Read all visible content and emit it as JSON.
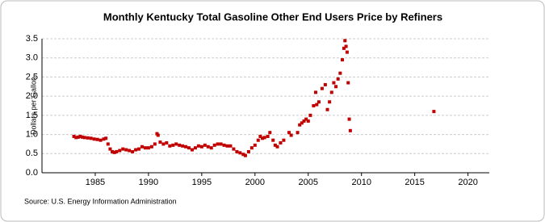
{
  "chart_data": {
    "type": "scatter",
    "title": "Monthly Kentucky Total Gasoline Other End Users Price by Refiners",
    "y_label": "Dollars per Gallon",
    "source": "Source: U.S. Energy Information Administration",
    "color": "#c00000",
    "x": [
      1983.0,
      1983.2,
      1983.4,
      1983.6,
      1983.8,
      1984.0,
      1984.3,
      1984.6,
      1984.9,
      1985.2,
      1985.5,
      1985.8,
      1986.0,
      1986.2,
      1986.4,
      1986.6,
      1986.8,
      1987.0,
      1987.3,
      1987.6,
      1987.9,
      1988.2,
      1988.5,
      1988.8,
      1989.1,
      1989.4,
      1989.7,
      1990.0,
      1990.3,
      1990.6,
      1990.8,
      1990.9,
      1991.1,
      1991.4,
      1991.7,
      1992.0,
      1992.3,
      1992.6,
      1992.9,
      1993.2,
      1993.5,
      1993.8,
      1994.1,
      1994.4,
      1994.7,
      1995.0,
      1995.3,
      1995.6,
      1995.9,
      1996.2,
      1996.5,
      1996.8,
      1997.1,
      1997.4,
      1997.7,
      1998.0,
      1998.3,
      1998.6,
      1998.9,
      1999.1,
      1999.4,
      1999.7,
      2000.0,
      2000.3,
      2000.5,
      2000.7,
      2000.9,
      2001.2,
      2001.4,
      2001.7,
      2001.9,
      2002.1,
      2002.4,
      2002.7,
      2003.2,
      2003.4,
      2004.0,
      2004.2,
      2004.4,
      2004.6,
      2004.8,
      2005.0,
      2005.2,
      2005.5,
      2005.7,
      2005.8,
      2006.0,
      2006.3,
      2006.6,
      2006.8,
      2007.0,
      2007.2,
      2007.4,
      2007.6,
      2007.8,
      2008.0,
      2008.2,
      2008.35,
      2008.45,
      2008.55,
      2008.65,
      2008.75,
      2008.85,
      2008.95,
      2016.8
    ],
    "values": [
      0.95,
      0.92,
      0.93,
      0.95,
      0.93,
      0.92,
      0.91,
      0.9,
      0.88,
      0.87,
      0.85,
      0.88,
      0.9,
      0.75,
      0.62,
      0.55,
      0.53,
      0.55,
      0.58,
      0.62,
      0.6,
      0.58,
      0.55,
      0.6,
      0.62,
      0.68,
      0.65,
      0.65,
      0.68,
      0.75,
      1.02,
      0.98,
      0.8,
      0.75,
      0.78,
      0.7,
      0.72,
      0.75,
      0.72,
      0.7,
      0.68,
      0.65,
      0.6,
      0.65,
      0.7,
      0.68,
      0.72,
      0.68,
      0.65,
      0.72,
      0.75,
      0.75,
      0.72,
      0.7,
      0.7,
      0.62,
      0.55,
      0.52,
      0.48,
      0.45,
      0.55,
      0.65,
      0.72,
      0.85,
      0.95,
      0.9,
      0.92,
      0.95,
      1.05,
      0.85,
      0.72,
      0.68,
      0.78,
      0.85,
      1.05,
      0.98,
      1.05,
      1.25,
      1.3,
      1.35,
      1.4,
      1.35,
      1.5,
      1.75,
      2.1,
      1.78,
      1.85,
      2.2,
      2.3,
      1.65,
      1.85,
      2.1,
      2.35,
      2.25,
      2.45,
      2.6,
      2.95,
      3.25,
      3.45,
      3.3,
      3.15,
      2.35,
      1.4,
      1.1,
      1.6
    ],
    "xlim": [
      1980,
      2022
    ],
    "ylim": [
      0,
      3.5
    ],
    "xticks": [
      1985,
      1990,
      1995,
      2000,
      2005,
      2010,
      2015,
      2020
    ],
    "yticks": [
      {
        "value": 0,
        "label": "0.0"
      },
      0.5,
      {
        "value": 1,
        "label": "1.0"
      },
      1.5,
      {
        "value": 2,
        "label": "2.0"
      },
      2.5,
      {
        "value": 3,
        "label": "3.0"
      },
      3.5
    ],
    "grid": true
  }
}
